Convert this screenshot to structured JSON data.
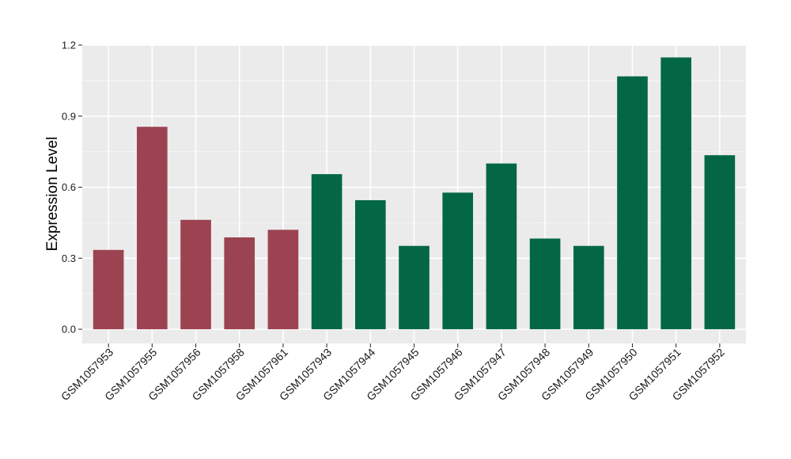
{
  "chart_data": {
    "type": "bar",
    "xlabel": "",
    "ylabel": "Expression Level",
    "ylim": [
      -0.06,
      1.2
    ],
    "yticks": [
      0.0,
      0.3,
      0.6,
      0.9,
      1.2
    ],
    "ytick_labels": [
      "0.0",
      "0.3",
      "0.6",
      "0.9",
      "1.2"
    ],
    "grid": true,
    "background": "#EBEBEB",
    "categories": [
      "GSM1057953",
      "GSM1057955",
      "GSM1057956",
      "GSM1057958",
      "GSM1057961",
      "GSM1057943",
      "GSM1057944",
      "GSM1057945",
      "GSM1057946",
      "GSM1057947",
      "GSM1057948",
      "GSM1057949",
      "GSM1057950",
      "GSM1057951",
      "GSM1057952"
    ],
    "values": [
      0.335,
      0.855,
      0.462,
      0.388,
      0.42,
      0.655,
      0.545,
      0.352,
      0.577,
      0.7,
      0.383,
      0.352,
      1.068,
      1.148,
      0.735
    ],
    "bar_colors": [
      "#9C4351",
      "#9C4351",
      "#9C4351",
      "#9C4351",
      "#9C4351",
      "#036745",
      "#036745",
      "#036745",
      "#036745",
      "#036745",
      "#036745",
      "#036745",
      "#036745",
      "#036745",
      "#036745"
    ]
  }
}
